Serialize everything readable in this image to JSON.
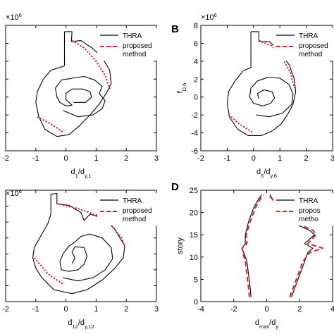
{
  "chart_data": [
    {
      "panel": "",
      "type": "line",
      "scale_label": "×10",
      "scale_exp": "6",
      "xlabel": {
        "main": "d",
        "sub1": "1",
        "mid": "/d",
        "sub2": "y,1"
      },
      "ylabel": null,
      "xlim": [
        -2,
        3
      ],
      "ylim": [
        -6,
        8
      ],
      "xticks": [
        "-2",
        "-1",
        "0",
        "1",
        "2",
        "3"
      ],
      "yticks": [],
      "legend": [
        "THRA",
        "proposed",
        "method"
      ],
      "series": [
        {
          "name": "THRA",
          "color": "#000000",
          "style": "solid",
          "points": [
            [
              -0.05,
              7.3
            ],
            [
              0.2,
              7.3
            ],
            [
              0.18,
              6.2
            ],
            [
              0.5,
              6.3
            ],
            [
              0.9,
              5.4
            ],
            [
              1.2,
              4.4
            ],
            [
              1.45,
              3.0
            ],
            [
              1.5,
              1.5
            ],
            [
              1.35,
              0.5
            ],
            [
              1.1,
              -0.8
            ],
            [
              0.8,
              -2.0
            ],
            [
              0.45,
              -3.2
            ],
            [
              0.1,
              -4.2
            ],
            [
              -0.3,
              -4.4
            ],
            [
              -0.7,
              -3.6
            ],
            [
              -0.9,
              -2.2
            ],
            [
              -1.0,
              -0.6
            ],
            [
              -0.95,
              0.6
            ],
            [
              -0.75,
              2.0
            ],
            [
              -0.5,
              3.0
            ],
            [
              -0.2,
              3.3
            ],
            [
              -0.05,
              3.5
            ],
            [
              -0.05,
              7.3
            ]
          ]
        },
        {
          "name": "THRA",
          "color": "#000000",
          "style": "solid",
          "points": [
            [
              -0.1,
              -1.5
            ],
            [
              0.4,
              -2.2
            ],
            [
              0.9,
              -2.0
            ],
            [
              1.2,
              -1.3
            ],
            [
              1.3,
              -0.4
            ],
            [
              1.1,
              0.4
            ],
            [
              1.2,
              1.2
            ],
            [
              0.95,
              1.9
            ],
            [
              0.6,
              2.3
            ],
            [
              0.2,
              2.1
            ],
            [
              -0.15,
              1.9
            ],
            [
              -0.35,
              1.0
            ],
            [
              -0.3,
              0.0
            ],
            [
              -0.2,
              -0.6
            ],
            [
              0.0,
              -1.0
            ],
            [
              0.2,
              -0.9
            ],
            [
              0.1,
              -0.6
            ],
            [
              0.0,
              -0.3
            ],
            [
              0.0,
              0.4
            ],
            [
              0.2,
              0.9
            ],
            [
              0.55,
              0.9
            ],
            [
              0.8,
              0.6
            ],
            [
              0.85,
              0.0
            ],
            [
              0.65,
              -0.6
            ],
            [
              0.25,
              -0.6
            ]
          ]
        },
        {
          "name": "proposed method",
          "color": "#e0202a",
          "style": "dashed",
          "points": [
            [
              0.2,
              6.3
            ],
            [
              0.6,
              5.5
            ],
            [
              1.0,
              4.0
            ],
            [
              1.3,
              2.4
            ],
            [
              1.45,
              0.9
            ]
          ]
        },
        {
          "name": "proposed method",
          "color": "#e0202a",
          "style": "dashed",
          "points": [
            [
              -0.95,
              -2.2
            ],
            [
              -0.5,
              -3.0
            ],
            [
              -0.1,
              -3.9
            ]
          ]
        }
      ]
    },
    {
      "panel": "B",
      "type": "line",
      "scale_label": "×10",
      "scale_exp": "6",
      "xlabel": {
        "main": "d",
        "sub1": "6",
        "mid": "/d",
        "sub2": "y,6"
      },
      "ylabel": {
        "main": "f",
        "sub": "D,6"
      },
      "xlim": [
        -2,
        3
      ],
      "ylim": [
        -6,
        8
      ],
      "xticks": [
        "-2",
        "-1",
        "0",
        "1",
        "2",
        "3"
      ],
      "yticks": [
        "-6",
        "-4",
        "-2",
        "0",
        "2",
        "4",
        "6",
        "8"
      ],
      "legend": [
        "THRA",
        "proposed",
        "method"
      ],
      "series": [
        {
          "name": "THRA",
          "color": "#000000",
          "style": "solid",
          "points": [
            [
              -0.1,
              7.3
            ],
            [
              0.2,
              7.3
            ],
            [
              0.2,
              6.2
            ],
            [
              0.6,
              6.2
            ],
            [
              1.0,
              5.0
            ],
            [
              1.35,
              3.6
            ],
            [
              1.55,
              2.0
            ],
            [
              1.6,
              0.6
            ],
            [
              1.5,
              -0.8
            ],
            [
              1.3,
              -1.9
            ],
            [
              1.05,
              -3.0
            ],
            [
              0.7,
              -3.8
            ],
            [
              0.3,
              -4.3
            ],
            [
              -0.2,
              -4.3
            ],
            [
              -0.6,
              -3.6
            ],
            [
              -0.9,
              -2.3
            ],
            [
              -1.0,
              -0.8
            ],
            [
              -0.95,
              0.6
            ],
            [
              -0.7,
              1.8
            ],
            [
              -0.4,
              2.9
            ],
            [
              -0.1,
              3.3
            ],
            [
              -0.1,
              7.3
            ]
          ]
        },
        {
          "name": "THRA",
          "color": "#000000",
          "style": "solid",
          "points": [
            [
              0.1,
              -2.0
            ],
            [
              0.6,
              -2.2
            ],
            [
              1.1,
              -1.8
            ],
            [
              1.45,
              -0.8
            ],
            [
              1.5,
              0.3
            ],
            [
              1.35,
              1.4
            ],
            [
              1.0,
              2.1
            ],
            [
              0.55,
              2.2
            ],
            [
              0.15,
              1.8
            ],
            [
              -0.1,
              1.0
            ],
            [
              -0.15,
              0.0
            ],
            [
              0.0,
              -0.7
            ],
            [
              0.35,
              -1.0
            ],
            [
              0.65,
              -0.7
            ],
            [
              0.8,
              -0.1
            ],
            [
              0.7,
              0.6
            ],
            [
              0.4,
              0.8
            ],
            [
              0.15,
              0.4
            ],
            [
              0.2,
              -0.2
            ]
          ]
        },
        {
          "name": "proposed method",
          "color": "#e0202a",
          "style": "dashed",
          "points": [
            [
              0.2,
              6.3
            ],
            [
              0.7,
              5.7
            ],
            [
              1.1,
              4.3
            ],
            [
              1.4,
              2.7
            ],
            [
              1.55,
              1.0
            ]
          ]
        },
        {
          "name": "proposed method",
          "color": "#e0202a",
          "style": "dashed",
          "points": [
            [
              -0.95,
              -2.0
            ],
            [
              -0.5,
              -3.1
            ],
            [
              0.0,
              -4.0
            ]
          ]
        }
      ]
    },
    {
      "panel": "",
      "type": "line",
      "scale_label": "×10",
      "scale_exp": "6",
      "xlabel": {
        "main": "d",
        "sub1": "12",
        "mid": "/d",
        "sub2": "y,12"
      },
      "ylabel": null,
      "xlim": [
        -2,
        3
      ],
      "ylim": [
        -6,
        8
      ],
      "xticks": [
        "-2",
        "-1",
        "0",
        "1",
        "2",
        "3"
      ],
      "yticks": [],
      "legend": [
        "THRA",
        "proposed",
        "method"
      ],
      "series": [
        {
          "name": "THRA",
          "color": "#000000",
          "style": "solid",
          "points": [
            [
              -0.5,
              7.5
            ],
            [
              -0.3,
              7.6
            ],
            [
              -0.3,
              6.3
            ],
            [
              0.1,
              6.1
            ],
            [
              0.5,
              5.2
            ],
            [
              0.6,
              4.2
            ],
            [
              0.8,
              5.0
            ],
            [
              1.2,
              4.5
            ],
            [
              1.6,
              3.2
            ],
            [
              1.95,
              1.0
            ],
            [
              1.9,
              -0.5
            ],
            [
              1.6,
              -1.9
            ],
            [
              1.2,
              -3.3
            ],
            [
              0.7,
              -4.5
            ],
            [
              0.2,
              -5.0
            ],
            [
              -0.4,
              -4.5
            ],
            [
              -0.8,
              -3.0
            ],
            [
              -1.0,
              -1.8
            ],
            [
              -1.1,
              -0.5
            ],
            [
              -1.05,
              0.8
            ],
            [
              -0.8,
              2.5
            ],
            [
              -0.6,
              3.8
            ],
            [
              -0.5,
              5.0
            ],
            [
              -0.5,
              7.5
            ]
          ]
        },
        {
          "name": "THRA",
          "color": "#000000",
          "style": "solid",
          "points": [
            [
              -0.1,
              -3.0
            ],
            [
              0.4,
              -3.4
            ],
            [
              0.9,
              -3.0
            ],
            [
              1.3,
              -2.0
            ],
            [
              1.55,
              -0.6
            ],
            [
              1.5,
              0.8
            ],
            [
              1.2,
              2.0
            ],
            [
              0.8,
              2.5
            ],
            [
              0.5,
              2.2
            ],
            [
              0.3,
              1.5
            ],
            [
              0.1,
              1.0
            ],
            [
              -0.1,
              0.0
            ],
            [
              -0.2,
              -1.0
            ],
            [
              -0.15,
              -2.0
            ],
            [
              0.1,
              -2.2
            ],
            [
              0.4,
              -2.0
            ],
            [
              0.6,
              -1.3
            ],
            [
              0.7,
              -0.3
            ],
            [
              0.6,
              0.8
            ],
            [
              0.3,
              0.9
            ],
            [
              0.2,
              0.2
            ],
            [
              0.3,
              -0.5
            ],
            [
              0.2,
              -1.2
            ]
          ]
        },
        {
          "name": "proposed method",
          "color": "#e0202a",
          "style": "dashed",
          "points": [
            [
              -0.3,
              6.3
            ],
            [
              0.4,
              5.7
            ],
            [
              1.0,
              4.9
            ],
            [
              1.5,
              3.6
            ],
            [
              1.85,
              2.0
            ],
            [
              1.95,
              0.8
            ]
          ]
        },
        {
          "name": "proposed method",
          "color": "#e0202a",
          "style": "dashed",
          "points": [
            [
              -1.05,
              -0.5
            ],
            [
              -0.6,
              -2.5
            ],
            [
              -0.1,
              -3.8
            ]
          ]
        }
      ]
    },
    {
      "panel": "D",
      "type": "line",
      "scale_label": "",
      "scale_exp": "",
      "xlabel": {
        "main": "d",
        "sub1": "max",
        "mid": "/d",
        "sub2": "y"
      },
      "ylabel": {
        "main": "story",
        "sub": ""
      },
      "xlim": [
        -4,
        4
      ],
      "ylim": [
        0,
        25
      ],
      "xticks": [
        "-4",
        "-2",
        "0",
        "2",
        "4"
      ],
      "yticks": [
        "0",
        "5",
        "10",
        "15",
        "20",
        "25"
      ],
      "legend": [
        "THRA",
        "propos",
        "metho"
      ],
      "series": [
        {
          "name": "THRA",
          "color": "#000000",
          "style": "solid",
          "points": [
            [
              -0.95,
              1
            ],
            [
              -1.0,
              3
            ],
            [
              -1.1,
              6
            ],
            [
              -1.2,
              9
            ],
            [
              -1.4,
              11
            ],
            [
              -1.5,
              12
            ],
            [
              -1.3,
              13
            ],
            [
              -1.3,
              15
            ],
            [
              -1.1,
              18
            ],
            [
              -0.8,
              21
            ],
            [
              -0.5,
              23
            ],
            [
              -0.3,
              24
            ]
          ]
        },
        {
          "name": "THRA",
          "color": "#000000",
          "style": "solid",
          "points": [
            [
              1.5,
              1
            ],
            [
              1.7,
              3
            ],
            [
              2.0,
              6
            ],
            [
              2.3,
              9
            ],
            [
              2.5,
              11
            ],
            [
              2.8,
              12
            ],
            [
              2.3,
              13
            ],
            [
              2.9,
              15
            ],
            [
              2.6,
              16
            ],
            [
              2.0,
              17
            ],
            [
              1.5,
              18
            ],
            [
              1.0,
              20
            ],
            [
              0.5,
              22
            ],
            [
              0.2,
              24
            ]
          ]
        },
        {
          "name": "propos",
          "color": "#e0202a",
          "style": "dashed",
          "points": [
            [
              -1.05,
              1
            ],
            [
              -1.1,
              3
            ],
            [
              -1.2,
              6
            ],
            [
              -1.3,
              9
            ],
            [
              -1.45,
              11
            ],
            [
              -1.5,
              12
            ],
            [
              -1.2,
              13
            ],
            [
              -1.25,
              15
            ],
            [
              -1.0,
              18
            ],
            [
              -0.7,
              21
            ],
            [
              -0.4,
              23
            ],
            [
              -0.2,
              24
            ]
          ]
        },
        {
          "name": "propos",
          "color": "#e0202a",
          "style": "dashed",
          "points": [
            [
              1.4,
              1
            ],
            [
              1.6,
              3
            ],
            [
              1.9,
              6
            ],
            [
              2.2,
              9
            ],
            [
              2.6,
              11
            ],
            [
              3.4,
              12
            ],
            [
              2.5,
              13
            ],
            [
              3.0,
              15
            ],
            [
              2.8,
              16
            ],
            [
              2.2,
              17
            ],
            [
              1.6,
              18
            ],
            [
              1.1,
              20
            ],
            [
              0.6,
              22
            ],
            [
              0.1,
              24
            ]
          ]
        }
      ]
    }
  ]
}
